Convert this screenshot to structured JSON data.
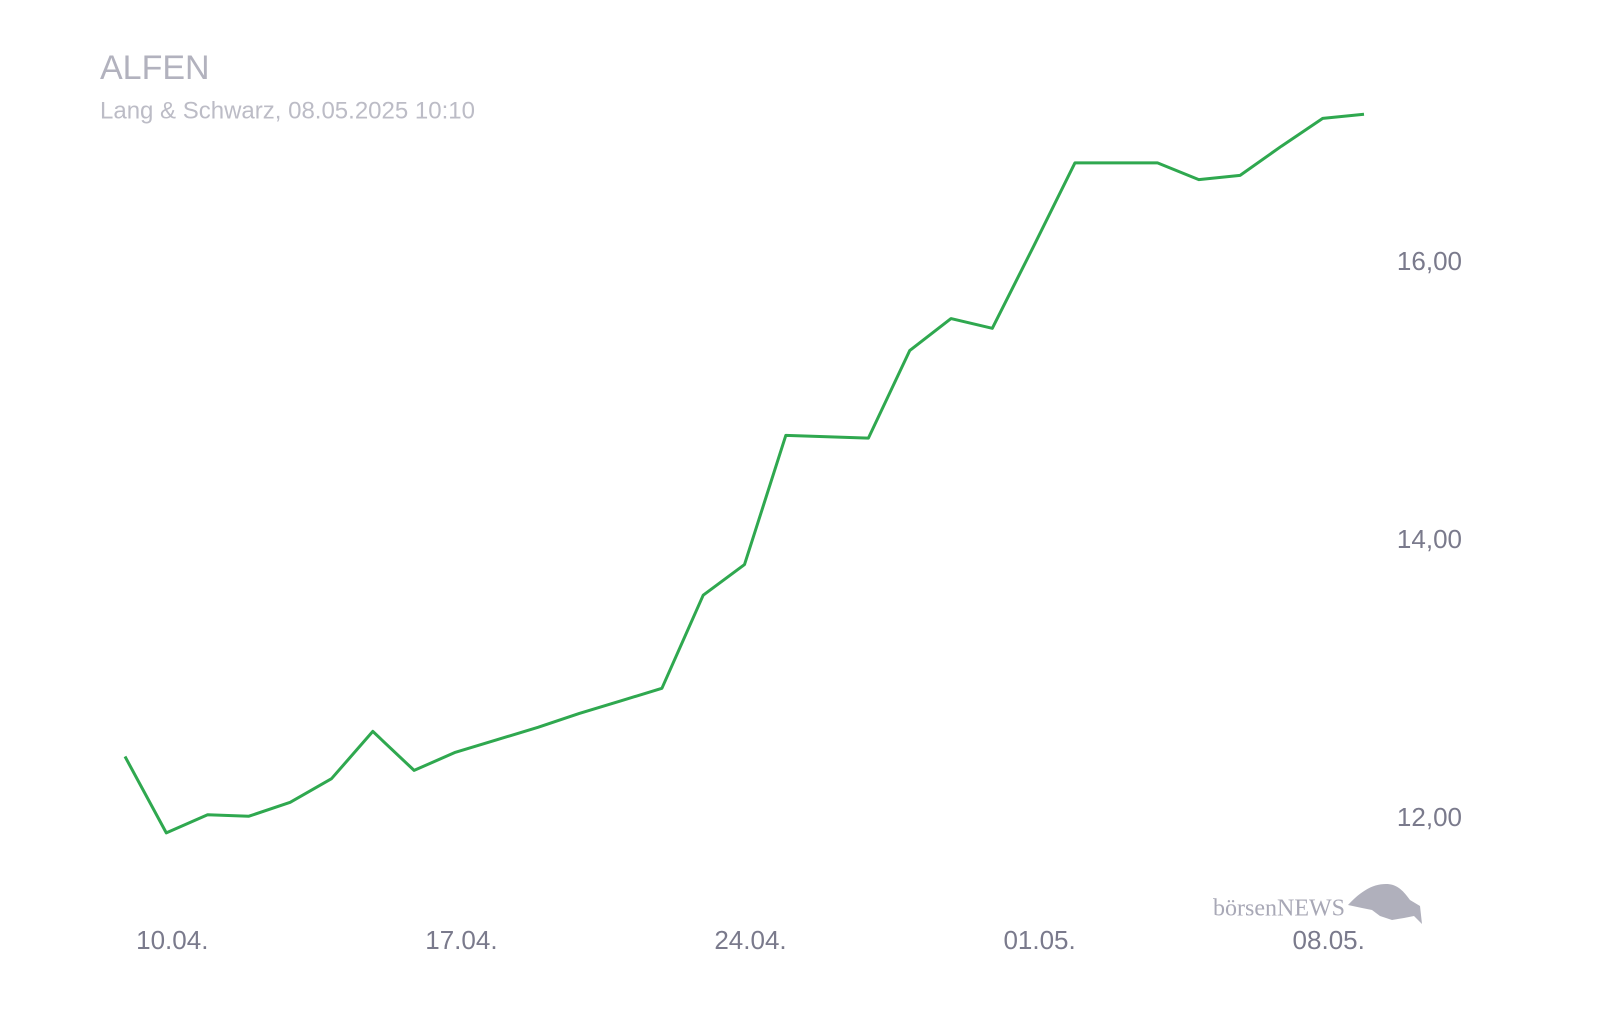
{
  "chart_data": {
    "type": "line",
    "title": "ALFEN",
    "subtitle": "Lang & Schwarz, 08.05.2025 10:10",
    "categories": [
      null,
      "10.04.",
      null,
      null,
      null,
      null,
      null,
      null,
      "17.04.",
      null,
      null,
      null,
      null,
      null,
      null,
      "24.04.",
      null,
      null,
      null,
      null,
      null,
      null,
      "01.05.",
      null,
      null,
      null,
      null,
      null,
      null,
      "08.05.",
      null
    ],
    "values": [
      12.45,
      11.9,
      12.03,
      12.02,
      12.12,
      12.29,
      12.63,
      12.35,
      12.48,
      12.57,
      12.66,
      12.76,
      12.85,
      12.94,
      13.61,
      13.83,
      14.76,
      14.75,
      14.74,
      15.37,
      15.6,
      15.53,
      16.12,
      16.72,
      16.72,
      16.72,
      16.6,
      16.63,
      16.84,
      17.04,
      17.07
    ],
    "color": "#2fa84f",
    "ylim": [
      11.5,
      17.5
    ],
    "yticks": [
      {
        "value": 12,
        "label": "12,00"
      },
      {
        "value": 14,
        "label": "14,00"
      },
      {
        "value": 16,
        "label": "16,00"
      }
    ],
    "grid": false
  },
  "logo": "börsenNEWS"
}
